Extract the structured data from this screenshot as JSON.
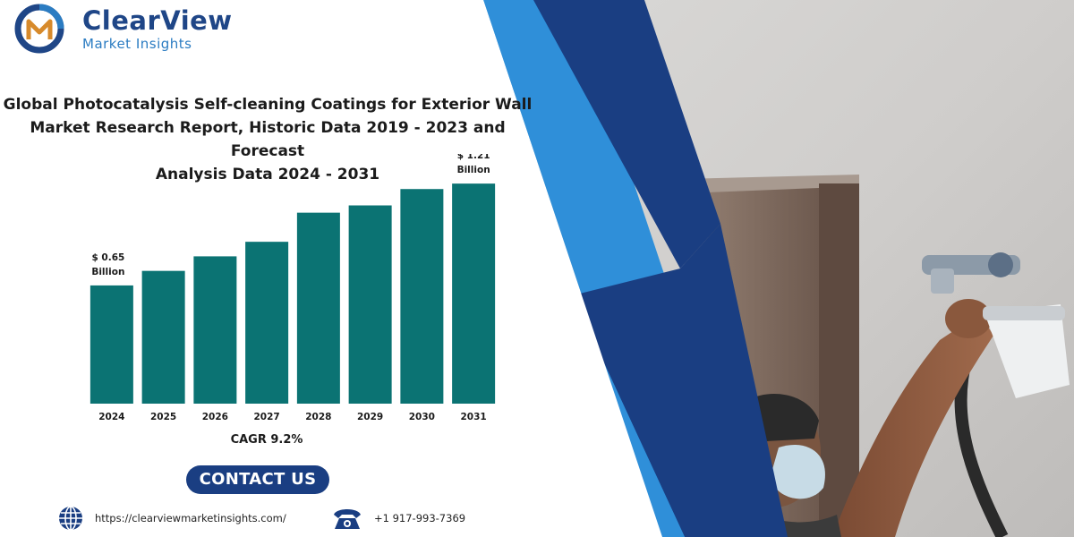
{
  "brand": {
    "name": "ClearView",
    "tagline": "Market Insights",
    "colors": {
      "navy": "#1a3e82",
      "blue": "#2f8fd9",
      "bar": "#0b7373"
    }
  },
  "report": {
    "title_lines": [
      "Global Photocatalysis Self-cleaning Coatings for Exterior Wall",
      "Market Research Report, Historic Data 2019 - 2023 and Forecast",
      "Analysis Data 2024 - 2031"
    ]
  },
  "chart_data": {
    "type": "bar",
    "categories": [
      "2024",
      "2025",
      "2026",
      "2027",
      "2028",
      "2029",
      "2030",
      "2031"
    ],
    "values": [
      0.65,
      0.73,
      0.81,
      0.89,
      1.05,
      1.09,
      1.18,
      1.21
    ],
    "unit": "Billion",
    "data_labels": [
      {
        "category": "2024",
        "line1": "$ 0.65",
        "line2": "Billion"
      },
      {
        "category": "2031",
        "line1": "$ 1.21",
        "line2": "Billion"
      }
    ],
    "title": "",
    "xlabel": "",
    "ylabel": "",
    "ylim": [
      0,
      1.25
    ],
    "grid": false,
    "legend": "none"
  },
  "cagr": "CAGR 9.2%",
  "contact": {
    "button_label": "CONTACT US",
    "website": "https://clearviewmarketinsights.com/",
    "phone": "+1 917-993-7369"
  },
  "icons": [
    "logo-mark-icon",
    "globe-icon",
    "telephone-icon"
  ]
}
